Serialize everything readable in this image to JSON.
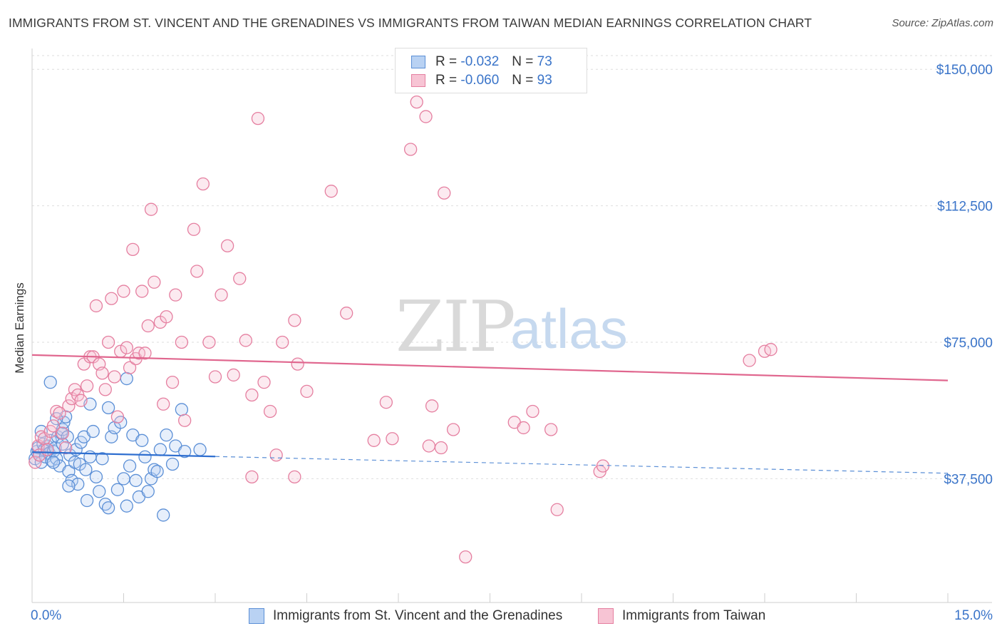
{
  "title": "IMMIGRANTS FROM ST. VINCENT AND THE GRENADINES VS IMMIGRANTS FROM TAIWAN MEDIAN EARNINGS CORRELATION CHART",
  "source": "Source: ZipAtlas.com",
  "watermark": {
    "zip": "ZIP",
    "atlas": "atlas"
  },
  "legend": {
    "r_label": "R =",
    "n_label": "N =",
    "series": [
      {
        "r": "-0.032",
        "n": "73",
        "color": "#5b8fd6",
        "fill": "#b9d2f3"
      },
      {
        "r": "-0.060",
        "n": "93",
        "color": "#e57fa0",
        "fill": "#f7c4d4"
      }
    ]
  },
  "bottom_legend": [
    "Immigrants from St. Vincent and the Grenadines",
    "Immigrants from Taiwan"
  ],
  "chart_data": {
    "type": "scatter",
    "title": "IMMIGRANTS FROM ST. VINCENT AND THE GRENADINES VS IMMIGRANTS FROM TAIWAN MEDIAN EARNINGS CORRELATION CHART",
    "xlabel": "",
    "ylabel": "Median Earnings",
    "xlim": [
      0,
      15
    ],
    "ylim": [
      0,
      155000
    ],
    "x_tick_labels": [
      {
        "value": 0,
        "label": "0.0%"
      },
      {
        "value": 15,
        "label": "15.0%"
      }
    ],
    "y_ticks": [
      {
        "value": 37500,
        "label": "$37,500"
      },
      {
        "value": 75000,
        "label": "$75,000"
      },
      {
        "value": 112500,
        "label": "$112,500"
      },
      {
        "value": 150000,
        "label": "$150,000"
      }
    ],
    "grid": true,
    "series": [
      {
        "name": "Immigrants from St. Vincent and the Grenadines",
        "color": "#5b8fd6",
        "fill": "#b9d2f3",
        "trend": {
          "x0": 0.0,
          "y0": 44800,
          "x1": 3.0,
          "y1": 43600,
          "dash_to_x": 15.0,
          "dash_to_y": 39000
        },
        "points": [
          [
            0.05,
            43000
          ],
          [
            0.08,
            45000
          ],
          [
            0.1,
            46000
          ],
          [
            0.12,
            44000
          ],
          [
            0.15,
            42000
          ],
          [
            0.18,
            47000
          ],
          [
            0.2,
            45500
          ],
          [
            0.22,
            43500
          ],
          [
            0.25,
            46500
          ],
          [
            0.28,
            44500
          ],
          [
            0.3,
            48000
          ],
          [
            0.32,
            42500
          ],
          [
            0.35,
            45000
          ],
          [
            0.38,
            46000
          ],
          [
            0.4,
            43000
          ],
          [
            0.42,
            49000
          ],
          [
            0.45,
            41000
          ],
          [
            0.48,
            50000
          ],
          [
            0.5,
            51000
          ],
          [
            0.52,
            53000
          ],
          [
            0.55,
            54500
          ],
          [
            0.58,
            49000
          ],
          [
            0.6,
            39500
          ],
          [
            0.62,
            44000
          ],
          [
            0.65,
            37000
          ],
          [
            0.7,
            42000
          ],
          [
            0.72,
            45500
          ],
          [
            0.75,
            36000
          ],
          [
            0.78,
            41500
          ],
          [
            0.8,
            47500
          ],
          [
            0.85,
            49000
          ],
          [
            0.88,
            40000
          ],
          [
            0.9,
            31500
          ],
          [
            0.95,
            43500
          ],
          [
            1.0,
            50500
          ],
          [
            1.05,
            38000
          ],
          [
            1.1,
            34000
          ],
          [
            1.15,
            43000
          ],
          [
            1.2,
            30500
          ],
          [
            1.25,
            29500
          ],
          [
            1.3,
            49000
          ],
          [
            1.35,
            51500
          ],
          [
            1.4,
            34500
          ],
          [
            1.45,
            53000
          ],
          [
            1.5,
            37500
          ],
          [
            1.55,
            30000
          ],
          [
            1.6,
            41000
          ],
          [
            1.65,
            49500
          ],
          [
            1.7,
            37000
          ],
          [
            1.75,
            32500
          ],
          [
            1.8,
            48000
          ],
          [
            1.85,
            43500
          ],
          [
            1.9,
            34000
          ],
          [
            1.95,
            37500
          ],
          [
            2.0,
            40000
          ],
          [
            2.05,
            39500
          ],
          [
            2.1,
            45500
          ],
          [
            2.15,
            27500
          ],
          [
            2.2,
            49500
          ],
          [
            2.3,
            41500
          ],
          [
            2.35,
            46500
          ],
          [
            0.3,
            64000
          ],
          [
            0.95,
            58000
          ],
          [
            1.25,
            57000
          ],
          [
            1.55,
            65000
          ],
          [
            2.45,
            56500
          ],
          [
            2.5,
            45000
          ],
          [
            2.75,
            45500
          ],
          [
            0.15,
            50500
          ],
          [
            0.4,
            54000
          ],
          [
            0.6,
            35500
          ],
          [
            0.35,
            42000
          ],
          [
            0.5,
            47000
          ]
        ]
      },
      {
        "name": "Immigrants from Taiwan",
        "color": "#e57fa0",
        "fill": "#f7c4d4",
        "trend": {
          "x0": 0.0,
          "y0": 71500,
          "x1": 15.0,
          "y1": 64500
        },
        "points": [
          [
            0.05,
            42000
          ],
          [
            0.1,
            46500
          ],
          [
            0.12,
            44000
          ],
          [
            0.15,
            49000
          ],
          [
            0.2,
            48500
          ],
          [
            0.25,
            45500
          ],
          [
            0.3,
            50500
          ],
          [
            0.35,
            52000
          ],
          [
            0.4,
            56000
          ],
          [
            0.45,
            55500
          ],
          [
            0.5,
            50000
          ],
          [
            0.55,
            46000
          ],
          [
            0.6,
            57500
          ],
          [
            0.65,
            59500
          ],
          [
            0.7,
            62000
          ],
          [
            0.75,
            60500
          ],
          [
            0.8,
            59000
          ],
          [
            0.85,
            69000
          ],
          [
            0.9,
            63000
          ],
          [
            0.95,
            71000
          ],
          [
            1.0,
            71000
          ],
          [
            1.05,
            85000
          ],
          [
            1.1,
            69000
          ],
          [
            1.15,
            66500
          ],
          [
            1.2,
            62000
          ],
          [
            1.25,
            75000
          ],
          [
            1.3,
            87000
          ],
          [
            1.35,
            65500
          ],
          [
            1.4,
            54500
          ],
          [
            1.45,
            72500
          ],
          [
            1.5,
            89000
          ],
          [
            1.55,
            73500
          ],
          [
            1.6,
            68000
          ],
          [
            1.65,
            100500
          ],
          [
            1.7,
            70500
          ],
          [
            1.75,
            72000
          ],
          [
            1.8,
            89000
          ],
          [
            1.85,
            72000
          ],
          [
            1.9,
            79500
          ],
          [
            1.95,
            111500
          ],
          [
            2.0,
            91500
          ],
          [
            2.1,
            80500
          ],
          [
            2.15,
            58000
          ],
          [
            2.2,
            82000
          ],
          [
            2.3,
            64000
          ],
          [
            2.35,
            88000
          ],
          [
            2.45,
            75000
          ],
          [
            2.5,
            53500
          ],
          [
            2.65,
            106000
          ],
          [
            2.7,
            94500
          ],
          [
            2.8,
            118500
          ],
          [
            2.9,
            75000
          ],
          [
            3.0,
            65500
          ],
          [
            3.1,
            88000
          ],
          [
            3.2,
            101500
          ],
          [
            3.3,
            66000
          ],
          [
            3.4,
            92500
          ],
          [
            3.5,
            75500
          ],
          [
            3.6,
            60500
          ],
          [
            3.7,
            136500
          ],
          [
            3.8,
            64000
          ],
          [
            3.9,
            56000
          ],
          [
            4.0,
            44000
          ],
          [
            4.1,
            75000
          ],
          [
            4.3,
            81000
          ],
          [
            4.35,
            69000
          ],
          [
            4.5,
            61500
          ],
          [
            4.9,
            116500
          ],
          [
            5.15,
            83000
          ],
          [
            5.6,
            48000
          ],
          [
            5.8,
            58500
          ],
          [
            5.9,
            48500
          ],
          [
            6.2,
            128000
          ],
          [
            6.3,
            141000
          ],
          [
            6.45,
            137000
          ],
          [
            6.55,
            57500
          ],
          [
            6.75,
            116000
          ],
          [
            6.9,
            51000
          ],
          [
            7.1,
            16000
          ],
          [
            7.9,
            53000
          ],
          [
            8.05,
            51500
          ],
          [
            8.2,
            56000
          ],
          [
            8.5,
            51000
          ],
          [
            8.6,
            29000
          ],
          [
            9.3,
            39500
          ],
          [
            9.35,
            41000
          ],
          [
            11.75,
            70000
          ],
          [
            12.0,
            72500
          ],
          [
            12.1,
            73000
          ],
          [
            3.6,
            38000
          ],
          [
            4.3,
            38000
          ],
          [
            6.7,
            46000
          ],
          [
            6.5,
            46500
          ]
        ]
      }
    ]
  }
}
